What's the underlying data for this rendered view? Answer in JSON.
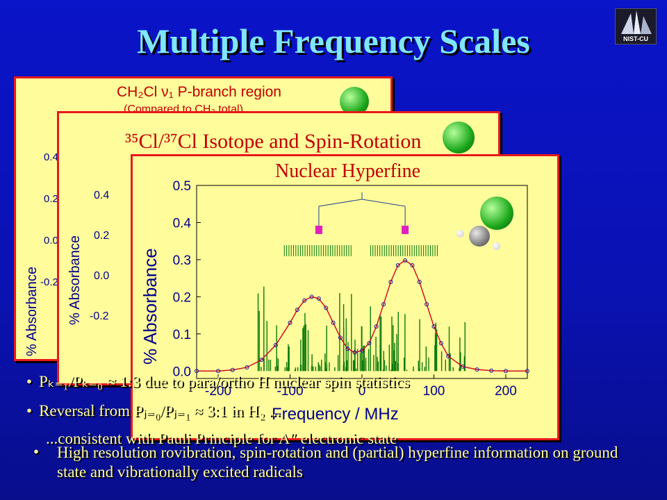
{
  "slide": {
    "title": "Multiple Frequency Scales",
    "logo_text": "NIST-CU"
  },
  "panel1": {
    "title": "CH₂Cl ν₁ P-branch region",
    "subtitle": "(Compared to CH₃ total)",
    "ylabel": "% Absorbance",
    "yticks": [
      "0.4",
      "0.2",
      "0.0",
      "-0.2"
    ]
  },
  "panel2": {
    "title": "³⁵Cl/³⁷Cl Isotope and Spin-Rotation",
    "ylabel": "% Absorbance",
    "yticks": [
      "0.4",
      "0.2",
      "0.0",
      "-0.2"
    ]
  },
  "panel3": {
    "title": "Nuclear Hyperfine",
    "ylabel": "% Absorbance",
    "xlabel": "Frequency / MHz"
  },
  "bullets": [
    "Pₖ₌₁/Pₖ₌₀ ≈ 1:3 due to para/ortho H nuclear spin statistics",
    "Reversal from Pⱼ₌₀/Pⱼ₌₁ ≈ 3:1 in H₂ ...",
    "...consistent with Pauli Principle for A″ electronic state"
  ],
  "bottom_bullet": "High resolution rovibration, spin-rotation and (partial) hyperfine information on ground state and vibrationally excited radicals",
  "chart_data": {
    "type": "line",
    "title": "Nuclear Hyperfine",
    "xlabel": "Frequency / MHz",
    "ylabel": "% Absorbance",
    "xlim": [
      -230,
      230
    ],
    "ylim": [
      -0.02,
      0.5
    ],
    "xticks": [
      -200,
      -100,
      0,
      100,
      200
    ],
    "yticks": [
      0.0,
      0.1,
      0.2,
      0.3,
      0.4,
      0.5
    ],
    "series": [
      {
        "type": "line",
        "x": [
          -230,
          -200,
          -180,
          -160,
          -140,
          -120,
          -100,
          -90,
          -80,
          -70,
          -60,
          -50,
          -40,
          -30,
          -20,
          -10,
          0,
          10,
          20,
          30,
          40,
          50,
          60,
          70,
          80,
          90,
          100,
          110,
          120,
          140,
          160,
          180,
          200,
          230
        ],
        "y": [
          0.0,
          0.0,
          0.003,
          0.01,
          0.03,
          0.07,
          0.13,
          0.165,
          0.19,
          0.2,
          0.195,
          0.17,
          0.13,
          0.09,
          0.06,
          0.05,
          0.055,
          0.075,
          0.12,
          0.18,
          0.24,
          0.285,
          0.298,
          0.285,
          0.24,
          0.18,
          0.12,
          0.075,
          0.04,
          0.012,
          0.004,
          0.001,
          0.0,
          0.0
        ]
      }
    ]
  }
}
